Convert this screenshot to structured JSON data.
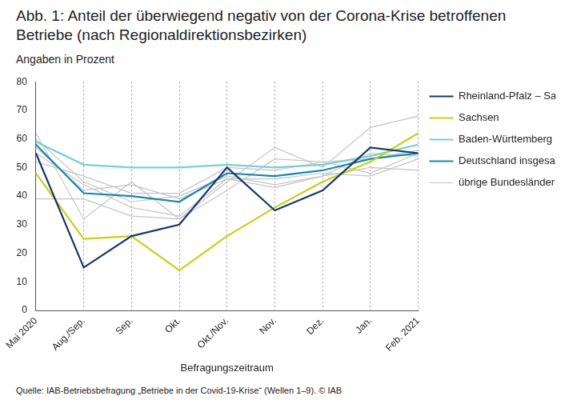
{
  "chart_data": {
    "type": "line",
    "title": "Abb. 1: Anteil der überwiegend negativ von der Corona-Krise betroffenen Betriebe (nach Regionaldirektionsbezirken)",
    "subtitle": "Angaben in Prozent",
    "x_label": "Befragungszeitraum",
    "source": "Quelle: IAB-Betriebsbefragung „Betriebe in der Covid-19-Krise“ (Wellen 1–9). © IAB",
    "categories": [
      "Mai 2020",
      "Aug./Sep.",
      "Sep.",
      "Okt.",
      "Okt./Nov.",
      "Nov.",
      "Dez.",
      "Jan.",
      "Feb. 2021"
    ],
    "series": [
      {
        "name": "Rheinland-Pfalz – Saarland",
        "color": "#17386b",
        "values": [
          55,
          15,
          26,
          30,
          50,
          35,
          42,
          57,
          55
        ]
      },
      {
        "name": "Sachsen",
        "color": "#c5d117",
        "values": [
          48,
          25,
          26,
          14,
          26,
          36,
          45,
          52,
          62
        ]
      },
      {
        "name": "Baden-Württemberg",
        "color": "#79cfd3",
        "values": [
          59,
          51,
          50,
          50,
          51,
          50,
          51,
          54,
          58
        ]
      },
      {
        "name": "übrige Bundesländer",
        "color": "#c4c4c4",
        "values": [
          62,
          32,
          45,
          32,
          45,
          57,
          50,
          64,
          68
        ]
      },
      {
        "name": "übrige Bundesländer",
        "color": "#c4c4c4",
        "values": [
          39,
          39,
          33,
          32,
          42,
          53,
          52,
          48,
          55
        ]
      },
      {
        "name": "übrige Bundesländer",
        "color": "#c4c4c4",
        "values": [
          60,
          45,
          38,
          40,
          47,
          44,
          47,
          50,
          49
        ]
      },
      {
        "name": "übrige Bundesländer",
        "color": "#c4c4c4",
        "values": [
          57,
          42,
          44,
          39,
          46,
          43,
          47,
          55,
          54
        ]
      },
      {
        "name": "übrige Bundesländer",
        "color": "#c4c4c4",
        "values": [
          52,
          47,
          41,
          41,
          50,
          49,
          52,
          53,
          56
        ]
      },
      {
        "name": "übrige Bundesländer",
        "color": "#c4c4c4",
        "values": [
          55,
          44,
          36,
          33,
          46,
          46,
          48,
          47,
          53
        ]
      },
      {
        "name": "Deutschland insgesamt",
        "color": "#1b86ad",
        "values": [
          58,
          41,
          40,
          38,
          48,
          47,
          49,
          53,
          55
        ]
      }
    ],
    "ylim": [
      0,
      80
    ],
    "yticks": [
      0,
      10,
      20,
      30,
      40,
      50,
      60,
      70,
      80
    ],
    "grid": true,
    "legend": "right"
  }
}
